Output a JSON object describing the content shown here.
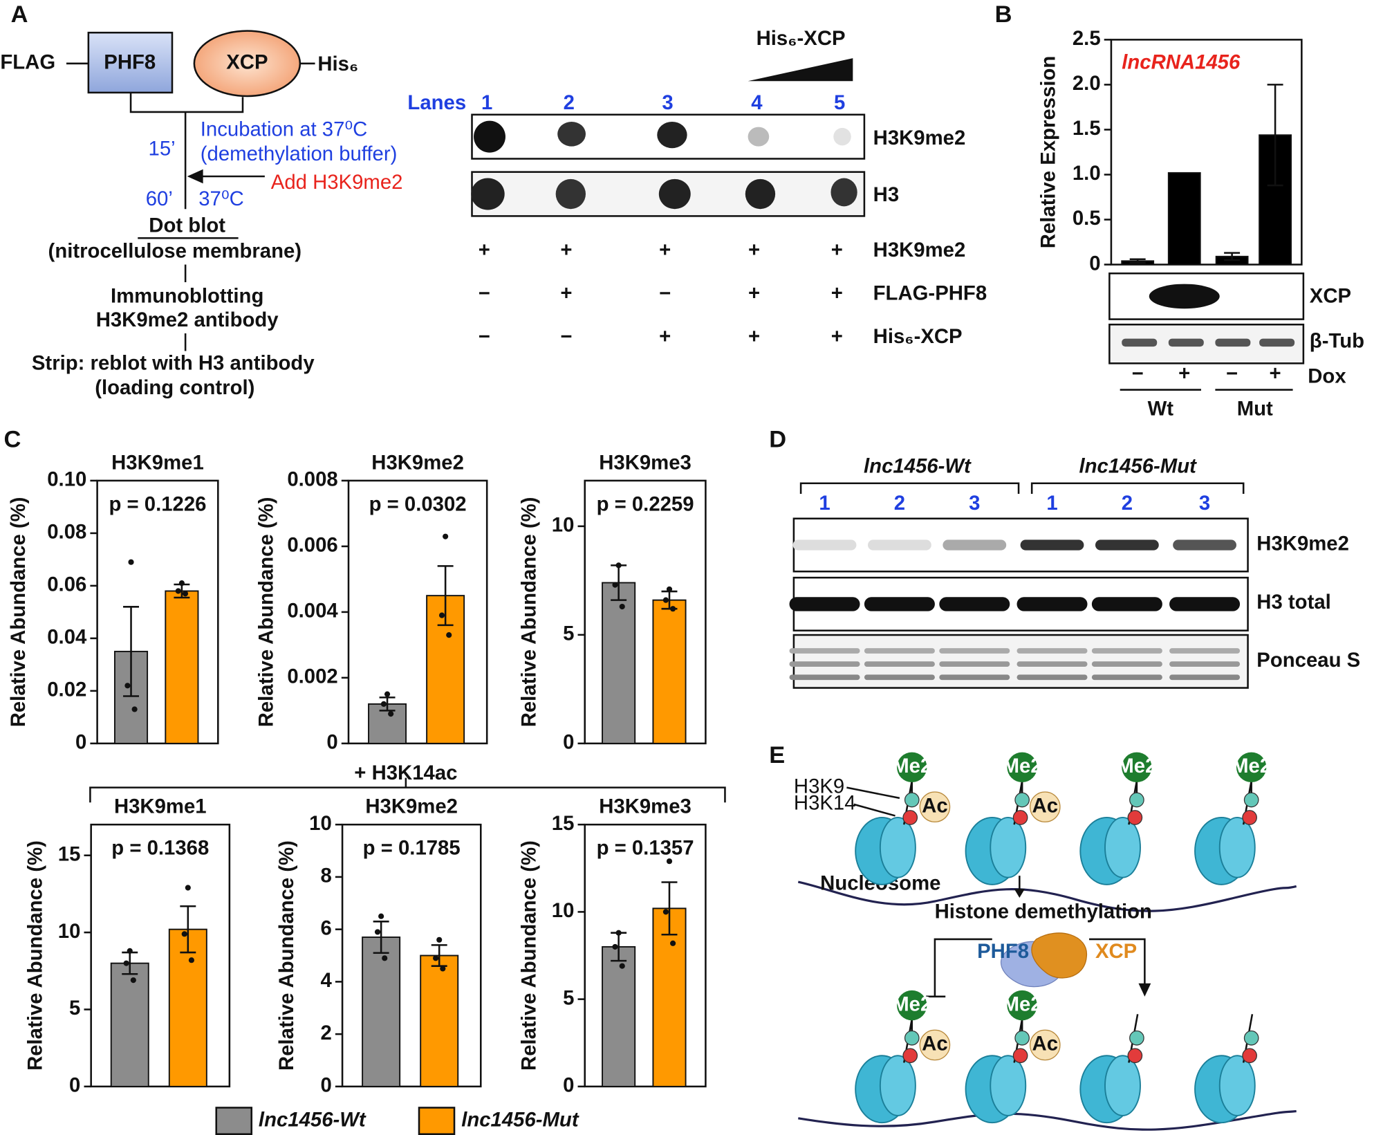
{
  "panel_labels": [
    "A",
    "B",
    "C",
    "D",
    "E"
  ],
  "panel_a": {
    "flag": "FLAG",
    "phf8": "PHF8",
    "xcp": "XCP",
    "his6": "His₆",
    "lanes_label": "Lanes",
    "lanes": [
      "1",
      "2",
      "3",
      "4",
      "5"
    ],
    "gradient_label": "His₆-XCP",
    "blot_labels": [
      "H3K9me2",
      "H3"
    ],
    "time_15": "15’",
    "time_60": "60’",
    "incubation": [
      "Incubation at 37⁰C",
      "(demethylation buffer)"
    ],
    "add": "Add H3K9me2",
    "temp": "37⁰C",
    "steps": [
      "Dot blot",
      "(nitrocellulose membrane)",
      "Immunoblotting",
      "H3K9me2 antibody",
      "Strip: reblot with H3 antibody",
      "(loading control)"
    ],
    "table": {
      "rows": [
        {
          "label": "H3K9me2",
          "cells": [
            "+",
            "+",
            "+",
            "+",
            "+"
          ]
        },
        {
          "label": "FLAG-PHF8",
          "cells": [
            "−",
            "+",
            "−",
            "+",
            "+"
          ]
        },
        {
          "label": "His₆-XCP",
          "cells": [
            "−",
            "−",
            "+",
            "+",
            "+"
          ]
        }
      ]
    }
  },
  "panel_b_blots": {
    "labels": [
      "XCP",
      "β-Tub"
    ],
    "dox": "Dox",
    "groups": [
      "Wt",
      "Mut"
    ]
  },
  "panel_c": {
    "bracket_label": "+ H3K14ac",
    "legend": [
      {
        "name": "lnc1456-Wt",
        "color": "#8c8c8c"
      },
      {
        "name": "lnc1456-Mut",
        "color": "#ff9900"
      }
    ]
  },
  "panel_d": {
    "groups": [
      "lnc1456-Wt",
      "lnc1456-Mut"
    ],
    "lanes": [
      "1",
      "2",
      "3",
      "1",
      "2",
      "3"
    ],
    "blot_labels": [
      "H3K9me2",
      "H3 total",
      "Ponceau S"
    ]
  },
  "panel_e": {
    "h3k9": "H3K9",
    "h3k14": "H3K14",
    "nucleosome": "Nucleosome",
    "process": "Histone demethylation",
    "phf8": "PHF8",
    "xcp": "XCP",
    "me2": "Me2",
    "ac": "Ac"
  },
  "chart_data": [
    {
      "type": "bar",
      "title": "lncRNA1456",
      "ylabel": "Relative Expression",
      "categories": [
        "−",
        "+",
        "−",
        "+"
      ],
      "values": [
        0.04,
        1.02,
        0.09,
        1.44
      ],
      "errors": [
        0.02,
        0,
        0.04,
        0.56
      ],
      "color": "#000000",
      "ylim": [
        0,
        2.5
      ],
      "yticks": [
        0,
        0.5,
        {
          "value": 1,
          "label": "1.0"
        },
        1.5,
        {
          "value": 2,
          "label": "2.0"
        },
        2.5
      ]
    },
    {
      "type": "bar",
      "title": "H3K9me1",
      "annotation": "p = 0.1226",
      "ylabel": "Relative Abundance (%)",
      "values": [
        0.035,
        0.058
      ],
      "errors": [
        0.017,
        0.0025
      ],
      "points": [
        [
          0.069,
          0.022,
          0.013
        ],
        [
          0.061,
          0.058,
          0.057
        ]
      ],
      "colors": [
        "#8c8c8c",
        "#ff9900"
      ],
      "ylim": [
        0,
        0.1
      ],
      "yticks": [
        0,
        0.02,
        0.04,
        0.06,
        0.08,
        {
          "value": 0.1,
          "label": "0.10"
        }
      ]
    },
    {
      "type": "bar",
      "title": "H3K9me2",
      "annotation": "p = 0.0302",
      "ylabel": "Relative Abundance (%)",
      "values": [
        0.0012,
        0.0045
      ],
      "errors": [
        0.0002,
        0.0009
      ],
      "points": [
        [
          0.0015,
          0.0012,
          0.0009
        ],
        [
          0.0063,
          0.0039,
          0.0033
        ]
      ],
      "colors": [
        "#8c8c8c",
        "#ff9900"
      ],
      "ylim": [
        0,
        0.008
      ],
      "yticks": [
        0,
        0.002,
        0.004,
        0.006,
        0.008
      ]
    },
    {
      "type": "bar",
      "title": "H3K9me3",
      "annotation": "p = 0.2259",
      "ylabel": "Relative Abundance (%)",
      "values": [
        7.4,
        6.6
      ],
      "errors": [
        0.8,
        0.4
      ],
      "points": [
        [
          8.2,
          7.3,
          6.3
        ],
        [
          7.1,
          6.6,
          6.2
        ]
      ],
      "colors": [
        "#8c8c8c",
        "#ff9900"
      ],
      "ylim": [
        0,
        12.1
      ],
      "yticks": [
        0,
        5,
        10
      ]
    },
    {
      "type": "bar",
      "title": "H3K9me1",
      "annotation": "p = 0.1368",
      "ylabel": "Relative Abundance (%)",
      "values": [
        8,
        10.2
      ],
      "errors": [
        0.7,
        1.5
      ],
      "points": [
        [
          8.8,
          8,
          6.9
        ],
        [
          12.9,
          9.9,
          8.2
        ]
      ],
      "colors": [
        "#8c8c8c",
        "#ff9900"
      ],
      "ylim": [
        0,
        17
      ],
      "yticks": [
        0,
        5,
        10,
        15
      ]
    },
    {
      "type": "bar",
      "title": "H3K9me2",
      "annotation": "p = 0.1785",
      "ylabel": "Relative Abundance (%)",
      "values": [
        5.7,
        5
      ],
      "errors": [
        0.6,
        0.4
      ],
      "points": [
        [
          6.5,
          5.9,
          4.9
        ],
        [
          5.6,
          4.9,
          4.5
        ]
      ],
      "colors": [
        "#8c8c8c",
        "#ff9900"
      ],
      "ylim": [
        0,
        10
      ],
      "yticks": [
        0,
        2,
        4,
        6,
        8,
        10
      ]
    },
    {
      "type": "bar",
      "title": "H3K9me3",
      "annotation": "p = 0.1357",
      "ylabel": "Relative Abundance (%)",
      "values": [
        8,
        10.2
      ],
      "errors": [
        0.8,
        1.5
      ],
      "points": [
        [
          8.8,
          8,
          6.9
        ],
        [
          12.9,
          10,
          8.2
        ]
      ],
      "colors": [
        "#8c8c8c",
        "#ff9900"
      ],
      "ylim": [
        0,
        15
      ],
      "yticks": [
        0,
        5,
        10,
        15
      ]
    }
  ]
}
